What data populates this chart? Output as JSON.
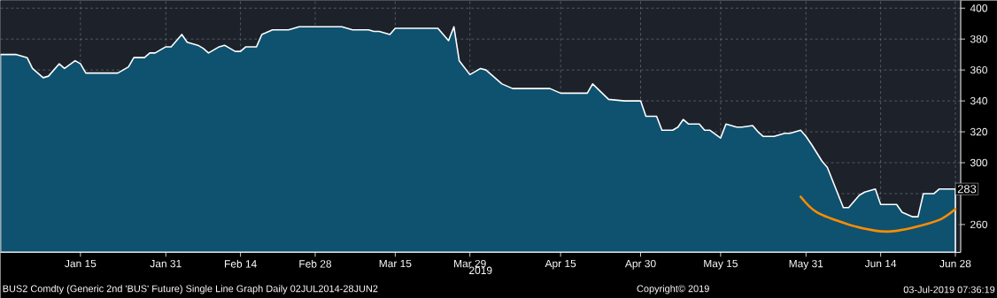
{
  "chart_data": {
    "type": "area",
    "xlabel": "2019",
    "xlim": [
      "2018-12-31",
      "2019-06-29"
    ],
    "ylim": [
      242,
      405
    ],
    "xticks": [
      {
        "value": "2019-01-15",
        "label": "Jan 15"
      },
      {
        "value": "2019-01-31",
        "label": "Jan 31"
      },
      {
        "value": "2019-02-14",
        "label": "Feb 14"
      },
      {
        "value": "2019-02-28",
        "label": "Feb 28"
      },
      {
        "value": "2019-03-15",
        "label": "Mar 15"
      },
      {
        "value": "2019-03-29",
        "label": "Mar 29"
      },
      {
        "value": "2019-04-15",
        "label": "Apr 15"
      },
      {
        "value": "2019-04-30",
        "label": "Apr 30"
      },
      {
        "value": "2019-05-15",
        "label": "May 15"
      },
      {
        "value": "2019-05-31",
        "label": "May 31"
      },
      {
        "value": "2019-06-14",
        "label": "Jun 14"
      },
      {
        "value": "2019-06-28",
        "label": "Jun 28"
      }
    ],
    "yticks": [
      260,
      {
        "value": 280,
        "label": null
      },
      300,
      320,
      340,
      360,
      380,
      400
    ],
    "grid": true,
    "series": [
      {
        "color": "#0e5270",
        "x": [
          "2018-12-31",
          "2019-01-03",
          "2019-01-05",
          "2019-01-06",
          "2019-01-08",
          "2019-01-09",
          "2019-01-11",
          "2019-01-12",
          "2019-01-14",
          "2019-01-15",
          "2019-01-16",
          "2019-01-22",
          "2019-01-24",
          "2019-01-25",
          "2019-01-27",
          "2019-01-28",
          "2019-01-29",
          "2019-01-31",
          "2019-02-01",
          "2019-02-03",
          "2019-02-04",
          "2019-02-06",
          "2019-02-07",
          "2019-02-08",
          "2019-02-10",
          "2019-02-11",
          "2019-02-13",
          "2019-02-14",
          "2019-02-15",
          "2019-02-17",
          "2019-02-18",
          "2019-02-20",
          "2019-02-23",
          "2019-02-25",
          "2019-02-28",
          "2019-03-04",
          "2019-03-05",
          "2019-03-07",
          "2019-03-10",
          "2019-03-11",
          "2019-03-12",
          "2019-03-14",
          "2019-03-15",
          "2019-03-23",
          "2019-03-25",
          "2019-03-26",
          "2019-03-27",
          "2019-03-29",
          "2019-03-31",
          "2019-04-01",
          "2019-04-03",
          "2019-04-04",
          "2019-04-06",
          "2019-04-13",
          "2019-04-15",
          "2019-04-20",
          "2019-04-21",
          "2019-04-24",
          "2019-04-27",
          "2019-04-30",
          "2019-05-01",
          "2019-05-03",
          "2019-05-04",
          "2019-05-06",
          "2019-05-07",
          "2019-05-08",
          "2019-05-09",
          "2019-05-11",
          "2019-05-12",
          "2019-05-13",
          "2019-05-15",
          "2019-05-16",
          "2019-05-18",
          "2019-05-19",
          "2019-05-21",
          "2019-05-22",
          "2019-05-23",
          "2019-05-25",
          "2019-05-27",
          "2019-05-28",
          "2019-05-30",
          "2019-05-31",
          "2019-06-01",
          "2019-06-03",
          "2019-06-04",
          "2019-06-07",
          "2019-06-08",
          "2019-06-10",
          "2019-06-11",
          "2019-06-13",
          "2019-06-14",
          "2019-06-17",
          "2019-06-18",
          "2019-06-20",
          "2019-06-21",
          "2019-06-22",
          "2019-06-24",
          "2019-06-25",
          "2019-06-28"
        ],
        "values": [
          370,
          370,
          368,
          361,
          355,
          356,
          364,
          361,
          366,
          364,
          358,
          358,
          362,
          368,
          368,
          371,
          371,
          375,
          375,
          383,
          378,
          376,
          374,
          371,
          375,
          376,
          372,
          372,
          375,
          375,
          383,
          386,
          386,
          388,
          388,
          388,
          388,
          386,
          386,
          385,
          385,
          383,
          387,
          387,
          379,
          388,
          366,
          357,
          361,
          360,
          354,
          351,
          348,
          348,
          345,
          345,
          351,
          341,
          340,
          340,
          330,
          330,
          321,
          321,
          323,
          328,
          325,
          325,
          321,
          321,
          316,
          325,
          323,
          323,
          324,
          320,
          317,
          317,
          319,
          319,
          321,
          317,
          312,
          301,
          297,
          271,
          271,
          279,
          281,
          283,
          273,
          273,
          268,
          265,
          265,
          280,
          280,
          283,
          283
        ]
      },
      {
        "type": "line",
        "color": "#ff8c00",
        "x": [
          "2019-05-30",
          "2019-06-02",
          "2019-06-08",
          "2019-06-13",
          "2019-06-16",
          "2019-06-20",
          "2019-06-25",
          "2019-06-28"
        ],
        "values": [
          278,
          268,
          260,
          256,
          255.6,
          258,
          263,
          270
        ]
      }
    ],
    "annotations": [
      "BUS2 Comdty (Generic 2nd 'BUS' Future) Single Line Graph  Daily 02JUL2014-28JUN2",
      "Copyright© 2019",
      "03-Jul-2019 07:36:19",
      {
        "text": "283",
        "x": "2019-06-28",
        "y": 283
      }
    ]
  }
}
